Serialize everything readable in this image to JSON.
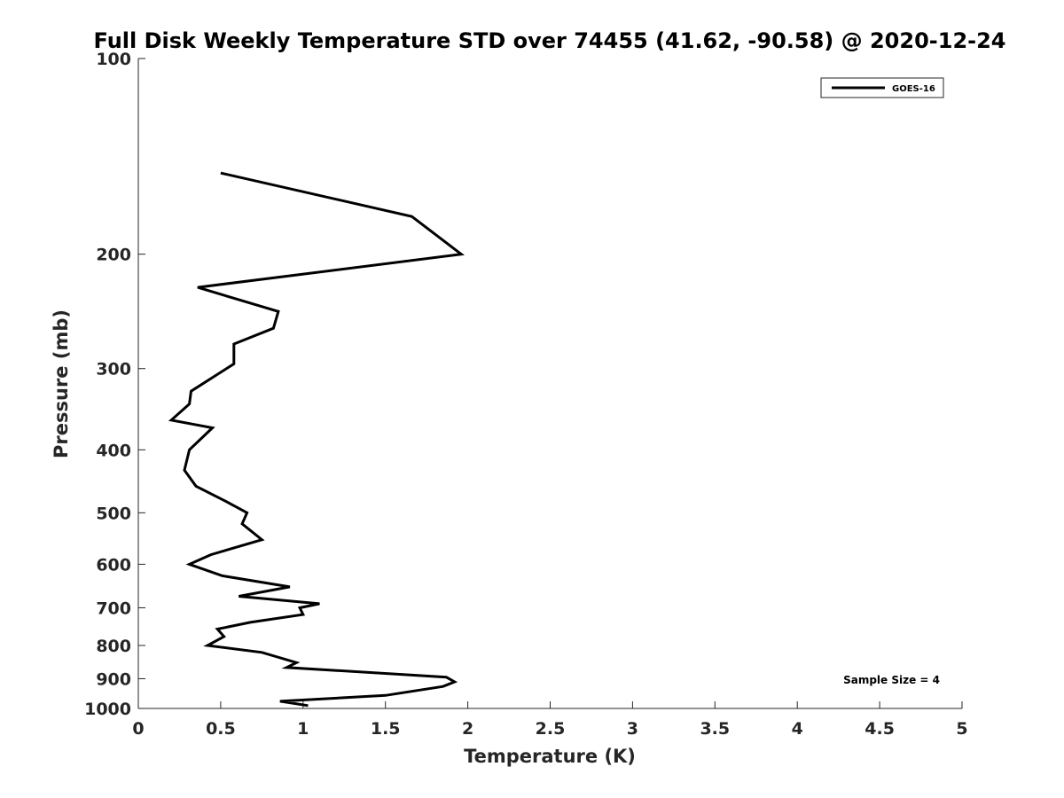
{
  "chart_data": {
    "type": "line",
    "title": "Full Disk Weekly Temperature STD over 74455 (41.62, -90.58) @ 2020-12-24",
    "xlabel": "Temperature (K)",
    "ylabel": "Pressure (mb)",
    "xlim": [
      0,
      5
    ],
    "ylim": [
      100,
      1000
    ],
    "y_scale": "log",
    "y_reversed": true,
    "x_ticks": [
      "0",
      "0.5",
      "1",
      "1.5",
      "2",
      "2.5",
      "3",
      "3.5",
      "4",
      "4.5",
      "5"
    ],
    "y_ticks": [
      "100",
      "200",
      "300",
      "400",
      "500",
      "600",
      "700",
      "800",
      "900",
      "1000"
    ],
    "grid": false,
    "legend_position": "top-right",
    "series": [
      {
        "name": "GOES-16",
        "color": "#000000",
        "x": [
          0.5,
          1.66,
          1.96,
          0.36,
          0.85,
          0.82,
          0.58,
          0.58,
          0.32,
          0.31,
          0.2,
          0.45,
          0.31,
          0.28,
          0.35,
          0.53,
          0.66,
          0.63,
          0.75,
          0.44,
          0.31,
          0.51,
          0.92,
          0.61,
          1.1,
          0.98,
          1.0,
          0.68,
          0.48,
          0.52,
          0.42,
          0.75,
          0.96,
          0.9,
          1.87,
          1.92,
          1.85,
          1.5,
          0.86,
          1.03
        ],
        "y": [
          150,
          175,
          200,
          225,
          245,
          260,
          275,
          295,
          325,
          340,
          360,
          370,
          400,
          430,
          455,
          480,
          500,
          520,
          550,
          580,
          600,
          625,
          650,
          672,
          690,
          700,
          717,
          737,
          755,
          775,
          800,
          820,
          850,
          865,
          895,
          910,
          925,
          955,
          975,
          990
        ]
      }
    ],
    "annotation": "Sample Size = 4"
  }
}
